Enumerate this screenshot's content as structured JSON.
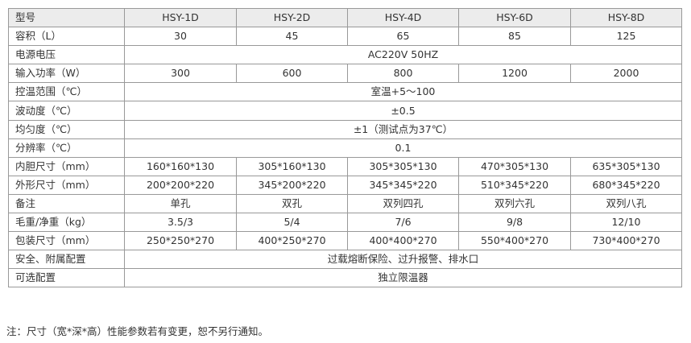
{
  "table": {
    "header": {
      "label": "型号",
      "models": [
        "HSY-1D",
        "HSY-2D",
        "HSY-4D",
        "HSY-6D",
        "HSY-8D"
      ]
    },
    "rows": [
      {
        "label": "容积（L）",
        "values": [
          "30",
          "45",
          "65",
          "85",
          "125"
        ]
      },
      {
        "label": "电源电压",
        "span": "AC220V 50HZ"
      },
      {
        "label": "输入功率（W）",
        "values": [
          "300",
          "600",
          "800",
          "1200",
          "2000"
        ]
      },
      {
        "label": "控温范围（℃）",
        "span": "室温+5～100"
      },
      {
        "label": "波动度（℃）",
        "span": "±0.5"
      },
      {
        "label": "均匀度（℃）",
        "span": "±1（测试点为37℃）"
      },
      {
        "label": "分辨率（℃）",
        "span": "0.1"
      },
      {
        "label": "内胆尺寸（mm）",
        "values": [
          "160*160*130",
          "305*160*130",
          "305*305*130",
          "470*305*130",
          "635*305*130"
        ]
      },
      {
        "label": "外形尺寸（mm）",
        "values": [
          "200*200*220",
          "345*200*220",
          "345*345*220",
          "510*345*220",
          "680*345*220"
        ]
      },
      {
        "label": "备注",
        "values": [
          "单孔",
          "双孔",
          "双列四孔",
          "双列六孔",
          "双列八孔"
        ]
      },
      {
        "label": "毛重/净重（kg）",
        "values": [
          "3.5/3",
          "5/4",
          "7/6",
          "9/8",
          "12/10"
        ]
      },
      {
        "label": "包装尺寸（mm）",
        "values": [
          "250*250*270",
          "400*250*270",
          "400*400*270",
          "550*400*270",
          "730*400*270"
        ]
      },
      {
        "label": "安全、附属配置",
        "span": "过载熔断保险、过升报警、排水口"
      },
      {
        "label": "可选配置",
        "span": "独立限温器"
      }
    ]
  },
  "note": "注：尺寸（宽*深*高）性能参数若有变更，恕不另行通知。"
}
